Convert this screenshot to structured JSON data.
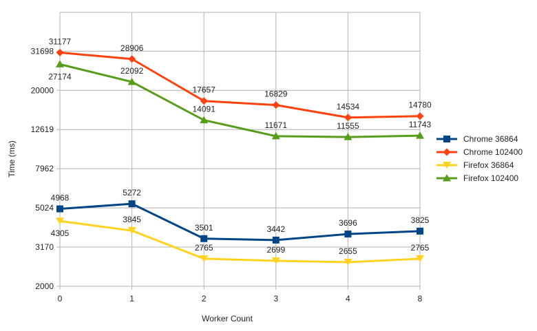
{
  "chart_data": {
    "type": "line",
    "title": "",
    "xlabel": "Worker Count",
    "ylabel": "Time (ms)",
    "y_scale": "log",
    "ylim": [
      2000,
      50000
    ],
    "y_ticks": [
      2000,
      3170,
      5024,
      7962,
      12619,
      20000,
      31698
    ],
    "categories": [
      "0",
      "1",
      "2",
      "3",
      "4",
      "8"
    ],
    "grid": true,
    "legend_position": "right",
    "series": [
      {
        "name": "Chrome 36864",
        "color": "#004586",
        "marker": "square",
        "values": [
          4968,
          5272,
          3501,
          3442,
          3696,
          3825
        ],
        "labels": [
          "4968",
          "5272",
          "3501",
          "3442",
          "3696",
          "3825"
        ]
      },
      {
        "name": "Chrome 102400",
        "color": "#ff420e",
        "marker": "diamond",
        "values": [
          31177,
          28906,
          17657,
          16829,
          14534,
          14780
        ],
        "labels": [
          "31177",
          "28906",
          "17657",
          "16829",
          "14534",
          "14780"
        ]
      },
      {
        "name": "Firefox 36864",
        "color": "#ffd320",
        "marker": "triangle-down",
        "values": [
          4305,
          3845,
          2765,
          2699,
          2655,
          2765
        ],
        "labels": [
          "4305",
          "3845",
          "2765",
          "2699",
          "2655",
          "2765"
        ]
      },
      {
        "name": "Firefox 102400",
        "color": "#579d1c",
        "marker": "triangle-up",
        "values": [
          27174,
          22092,
          14091,
          11671,
          11555,
          11743
        ],
        "labels": [
          "27174",
          "22092",
          "14091",
          "11671",
          "11555",
          "11743"
        ]
      }
    ]
  }
}
